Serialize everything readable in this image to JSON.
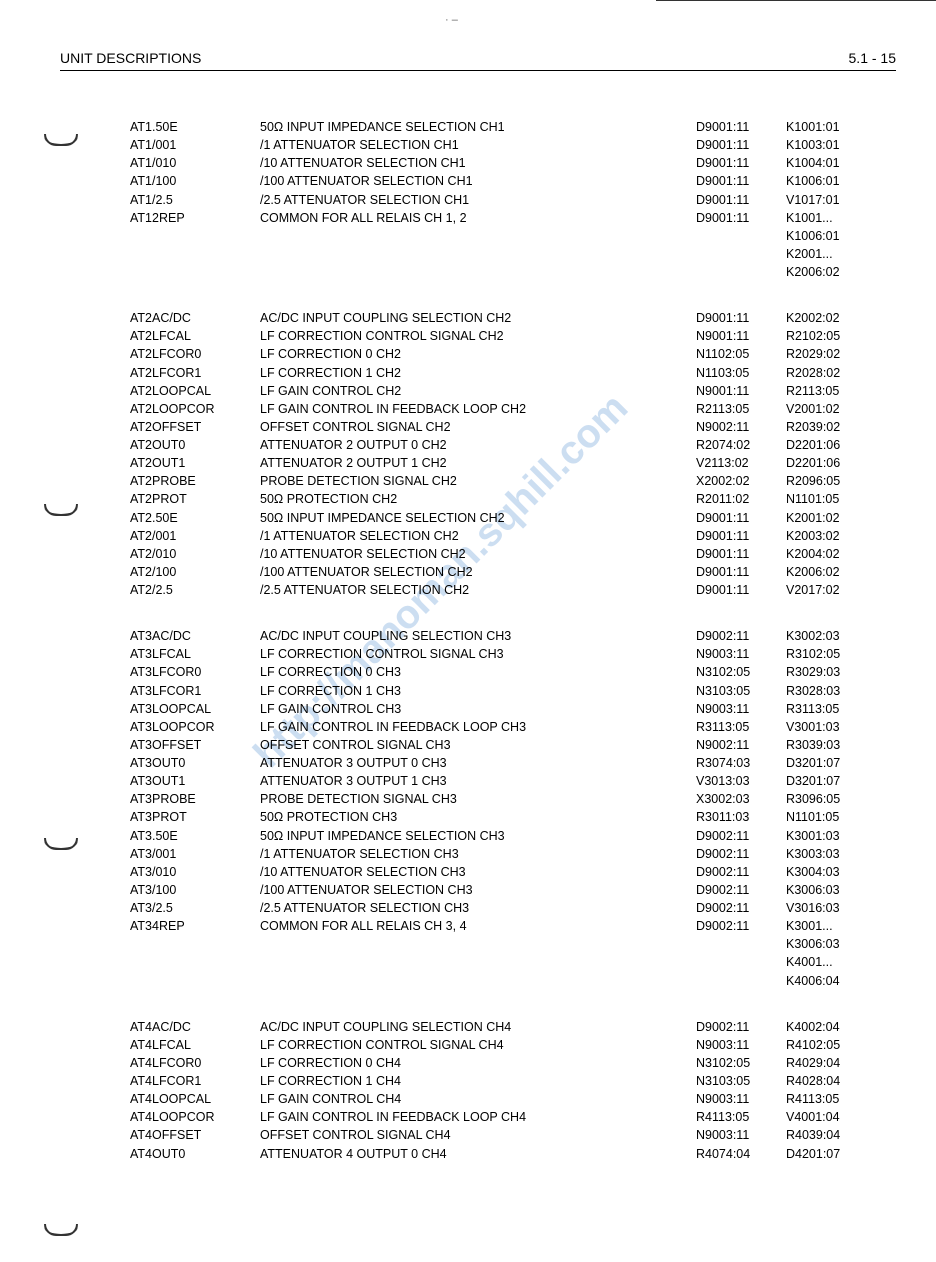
{
  "header": {
    "title": "UNIT DESCRIPTIONS",
    "page": "5.1 - 15"
  },
  "groups": [
    {
      "rows": [
        {
          "c1": "AT1.50E",
          "c2": "50Ω INPUT IMPEDANCE SELECTION CH1",
          "c3": "D9001:11",
          "c4": "K1001:01"
        },
        {
          "c1": "AT1/001",
          "c2": "/1 ATTENUATOR SELECTION CH1",
          "c3": "D9001:11",
          "c4": "K1003:01"
        },
        {
          "c1": "AT1/010",
          "c2": "/10 ATTENUATOR SELECTION CH1",
          "c3": "D9001:11",
          "c4": "K1004:01"
        },
        {
          "c1": "AT1/100",
          "c2": "/100 ATTENUATOR SELECTION CH1",
          "c3": "D9001:11",
          "c4": "K1006:01"
        },
        {
          "c1": "AT1/2.5",
          "c2": "/2.5 ATTENUATOR SELECTION CH1",
          "c3": "D9001:11",
          "c4": "V1017:01"
        },
        {
          "c1": "AT12REP",
          "c2": "COMMON FOR ALL RELAIS CH 1, 2",
          "c3": "D9001:11",
          "c4": "K1001..."
        }
      ],
      "extra": [
        "K1006:01",
        "K2001...",
        "K2006:02"
      ]
    },
    {
      "rows": [
        {
          "c1": "AT2AC/DC",
          "c2": "AC/DC INPUT COUPLING SELECTION CH2",
          "c3": "D9001:11",
          "c4": "K2002:02"
        },
        {
          "c1": "AT2LFCAL",
          "c2": "LF CORRECTION CONTROL SIGNAL CH2",
          "c3": "N9001:11",
          "c4": "R2102:05"
        },
        {
          "c1": "AT2LFCOR0",
          "c2": "LF CORRECTION 0 CH2",
          "c3": "N1102:05",
          "c4": "R2029:02"
        },
        {
          "c1": "AT2LFCOR1",
          "c2": "LF CORRECTION 1 CH2",
          "c3": "N1103:05",
          "c4": "R2028:02"
        },
        {
          "c1": "AT2LOOPCAL",
          "c2": "LF GAIN CONTROL CH2",
          "c3": "N9001:11",
          "c4": "R2113:05"
        },
        {
          "c1": "AT2LOOPCOR",
          "c2": "LF GAIN CONTROL IN FEEDBACK LOOP CH2",
          "c3": "R2113:05",
          "c4": "V2001:02"
        },
        {
          "c1": "AT2OFFSET",
          "c2": "OFFSET CONTROL SIGNAL CH2",
          "c3": "N9002:11",
          "c4": "R2039:02"
        },
        {
          "c1": "AT2OUT0",
          "c2": "ATTENUATOR 2 OUTPUT 0 CH2",
          "c3": "R2074:02",
          "c4": "D2201:06"
        },
        {
          "c1": "AT2OUT1",
          "c2": "ATTENUATOR 2 OUTPUT 1 CH2",
          "c3": "V2113:02",
          "c4": "D2201:06"
        },
        {
          "c1": "AT2PROBE",
          "c2": "PROBE DETECTION SIGNAL CH2",
          "c3": "X2002:02",
          "c4": "R2096:05"
        },
        {
          "c1": "AT2PROT",
          "c2": "50Ω PROTECTION CH2",
          "c3": "R2011:02",
          "c4": "N1101:05"
        },
        {
          "c1": "AT2.50E",
          "c2": "50Ω INPUT IMPEDANCE SELECTION CH2",
          "c3": "D9001:11",
          "c4": "K2001:02"
        },
        {
          "c1": "AT2/001",
          "c2": "/1 ATTENUATOR SELECTION CH2",
          "c3": "D9001:11",
          "c4": "K2003:02"
        },
        {
          "c1": "AT2/010",
          "c2": "/10 ATTENUATOR SELECTION CH2",
          "c3": "D9001:11",
          "c4": "K2004:02"
        },
        {
          "c1": "AT2/100",
          "c2": "/100 ATTENUATOR SELECTION CH2",
          "c3": "D9001:11",
          "c4": "K2006:02"
        },
        {
          "c1": "AT2/2.5",
          "c2": "/2.5 ATTENUATOR SELECTION CH2",
          "c3": "D9001:11",
          "c4": "V2017:02"
        }
      ],
      "extra": []
    },
    {
      "rows": [
        {
          "c1": "AT3AC/DC",
          "c2": "AC/DC INPUT COUPLING SELECTION CH3",
          "c3": "D9002:11",
          "c4": "K3002:03"
        },
        {
          "c1": "AT3LFCAL",
          "c2": "LF CORRECTION CONTROL SIGNAL CH3",
          "c3": "N9003:11",
          "c4": "R3102:05"
        },
        {
          "c1": "AT3LFCOR0",
          "c2": "LF CORRECTION 0 CH3",
          "c3": "N3102:05",
          "c4": "R3029:03"
        },
        {
          "c1": "AT3LFCOR1",
          "c2": "LF CORRECTION 1 CH3",
          "c3": "N3103:05",
          "c4": "R3028:03"
        },
        {
          "c1": "AT3LOOPCAL",
          "c2": "LF GAIN CONTROL CH3",
          "c3": "N9003:11",
          "c4": "R3113:05"
        },
        {
          "c1": "AT3LOOPCOR",
          "c2": "LF GAIN CONTROL IN FEEDBACK LOOP CH3",
          "c3": "R3113:05",
          "c4": "V3001:03"
        },
        {
          "c1": "AT3OFFSET",
          "c2": "OFFSET CONTROL SIGNAL CH3",
          "c3": "N9002:11",
          "c4": "R3039:03"
        },
        {
          "c1": "AT3OUT0",
          "c2": "ATTENUATOR 3 OUTPUT 0 CH3",
          "c3": "R3074:03",
          "c4": "D3201:07"
        },
        {
          "c1": "AT3OUT1",
          "c2": "ATTENUATOR 3 OUTPUT 1 CH3",
          "c3": "V3013:03",
          "c4": "D3201:07"
        },
        {
          "c1": "AT3PROBE",
          "c2": "PROBE DETECTION SIGNAL CH3",
          "c3": "X3002:03",
          "c4": "R3096:05"
        },
        {
          "c1": "AT3PROT",
          "c2": "50Ω PROTECTION CH3",
          "c3": "R3011:03",
          "c4": "N1101:05"
        },
        {
          "c1": "AT3.50E",
          "c2": "50Ω INPUT IMPEDANCE SELECTION CH3",
          "c3": "D9002:11",
          "c4": "K3001:03"
        },
        {
          "c1": "AT3/001",
          "c2": "/1 ATTENUATOR SELECTION CH3",
          "c3": "D9002:11",
          "c4": "K3003:03"
        },
        {
          "c1": "AT3/010",
          "c2": "/10 ATTENUATOR SELECTION CH3",
          "c3": "D9002:11",
          "c4": "K3004:03"
        },
        {
          "c1": "AT3/100",
          "c2": "/100 ATTENUATOR SELECTION CH3",
          "c3": "D9002:11",
          "c4": "K3006:03"
        },
        {
          "c1": "AT3/2.5",
          "c2": "/2.5 ATTENUATOR SELECTION CH3",
          "c3": "D9002:11",
          "c4": "V3016:03"
        },
        {
          "c1": "AT34REP",
          "c2": "COMMON FOR ALL RELAIS CH 3, 4",
          "c3": "D9002:11",
          "c4": "K3001..."
        }
      ],
      "extra": [
        "K3006:03",
        "K4001...",
        "K4006:04"
      ]
    },
    {
      "rows": [
        {
          "c1": "AT4AC/DC",
          "c2": "AC/DC INPUT COUPLING SELECTION CH4",
          "c3": "D9002:11",
          "c4": "K4002:04"
        },
        {
          "c1": "AT4LFCAL",
          "c2": "LF CORRECTION CONTROL SIGNAL CH4",
          "c3": "N9003:11",
          "c4": "R4102:05"
        },
        {
          "c1": "AT4LFCOR0",
          "c2": "LF CORRECTION 0 CH4",
          "c3": "N3102:05",
          "c4": "R4029:04"
        },
        {
          "c1": "AT4LFCOR1",
          "c2": "LF CORRECTION 1 CH4",
          "c3": "N3103:05",
          "c4": "R4028:04"
        },
        {
          "c1": "AT4LOOPCAL",
          "c2": "LF GAIN CONTROL CH4",
          "c3": "N9003:11",
          "c4": "R4113:05"
        },
        {
          "c1": "AT4LOOPCOR",
          "c2": "LF GAIN CONTROL IN FEEDBACK LOOP CH4",
          "c3": "R4113:05",
          "c4": "V4001:04"
        },
        {
          "c1": "AT4OFFSET",
          "c2": "OFFSET CONTROL SIGNAL CH4",
          "c3": "N9003:11",
          "c4": "R4039:04"
        },
        {
          "c1": "AT4OUT0",
          "c2": "ATTENUATOR 4 OUTPUT 0 CH4",
          "c3": "R4074:04",
          "c4": "D4201:07"
        }
      ],
      "extra": []
    }
  ],
  "watermark_text": "http://manoman.sqhill.com"
}
